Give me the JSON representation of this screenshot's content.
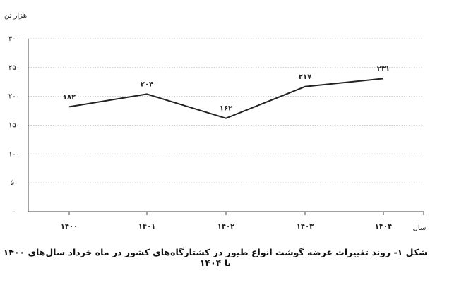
{
  "chart_data": {
    "type": "line",
    "y_label": "هزار تن",
    "x_label": "سال",
    "caption": "شکل ۱- روند تغییرات عرضه گوشت انواع طیور در کشتارگاه‌های کشور در ماه خرداد سال‌های ۱۴۰۰ تا ۱۴۰۴",
    "categories": [
      "۱۴۰۰",
      "۱۴۰۱",
      "۱۴۰۲",
      "۱۴۰۳",
      "۱۴۰۴"
    ],
    "values": [
      182,
      204,
      162,
      217,
      231
    ],
    "value_labels": [
      "۱۸۲",
      "۲۰۴",
      "۱۶۲",
      "۲۱۷",
      "۲۳۱"
    ],
    "color": "#222222",
    "ylim": [
      0,
      300
    ],
    "yticks": [
      {
        "value": 0,
        "label": "۰"
      },
      {
        "value": 50,
        "label": "۵۰"
      },
      {
        "value": 100,
        "label": "۱۰۰"
      },
      {
        "value": 150,
        "label": "۱۵۰"
      },
      {
        "value": 200,
        "label": "۲۰۰"
      },
      {
        "value": 250,
        "label": "۲۵۰"
      },
      {
        "value": 300,
        "label": "۳۰۰"
      }
    ],
    "grid": true
  }
}
